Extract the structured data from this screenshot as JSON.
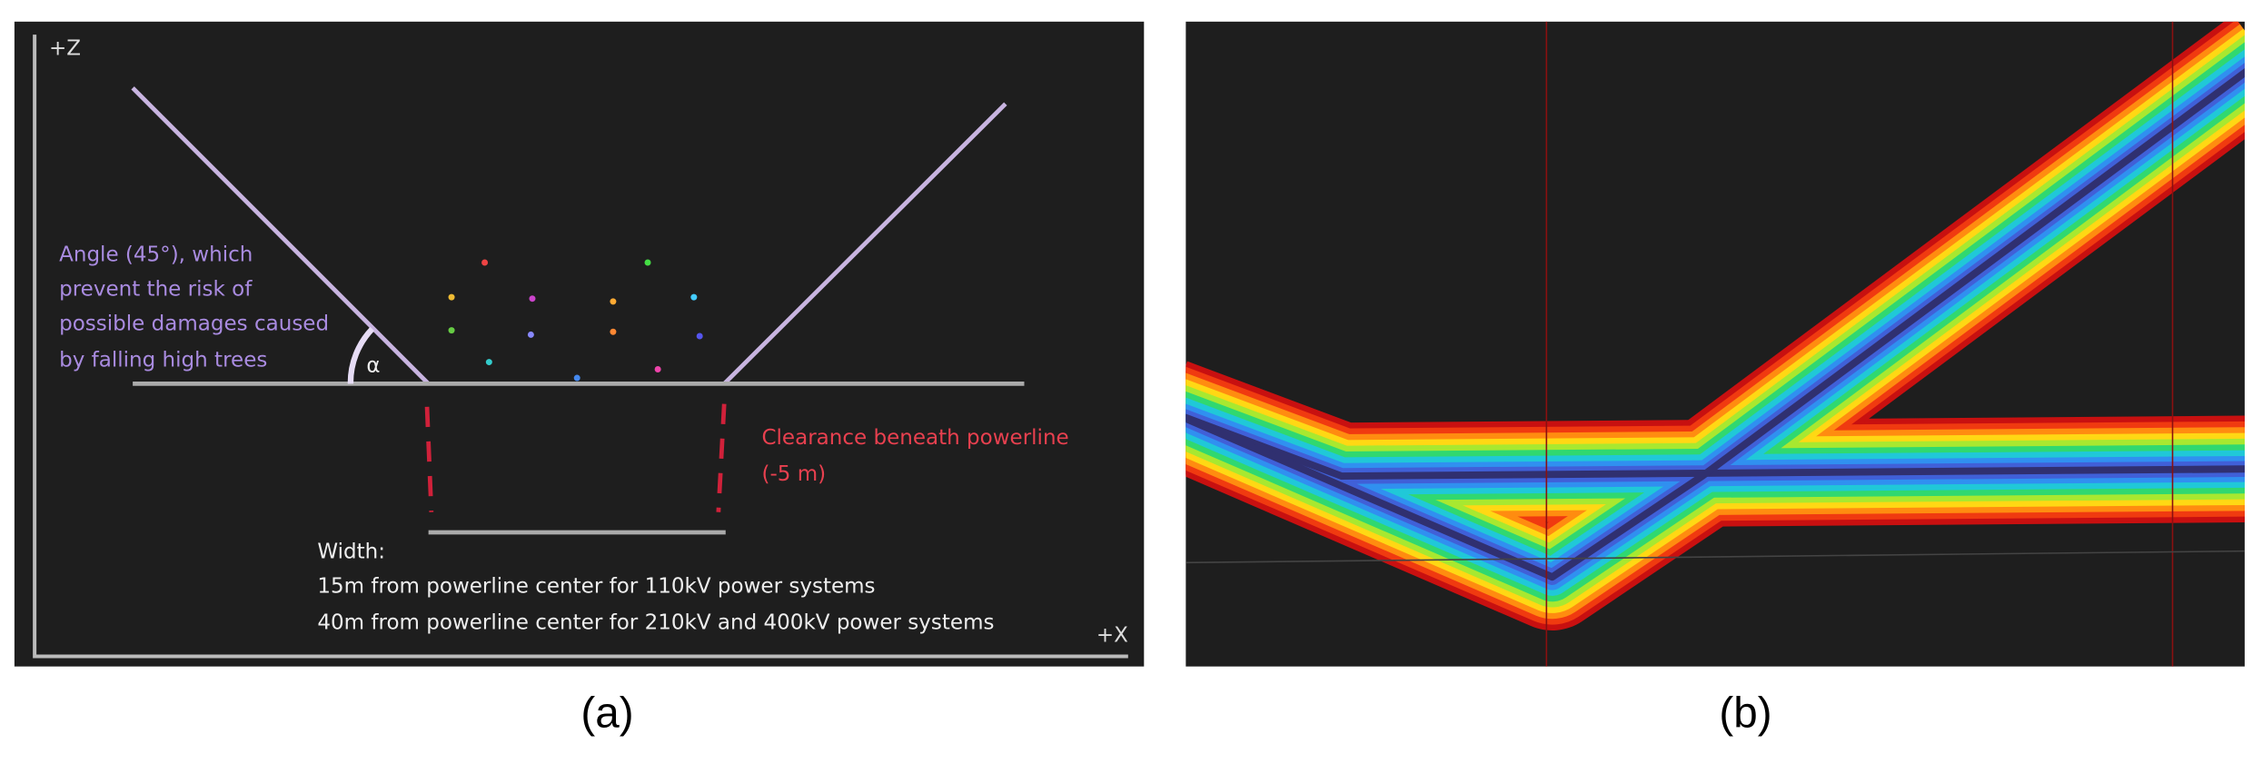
{
  "panel_a": {
    "axis_z": "+Z",
    "axis_x": "+X",
    "angle_note": [
      "Angle (45°), which",
      "prevent the risk of",
      "possible damages caused",
      "by falling high trees"
    ],
    "angle_symbol": "α",
    "clearance_note": [
      "Clearance beneath powerline",
      "(-5 m)"
    ],
    "width_note": [
      "Width:",
      "15m from powerline center for 110kV power systems",
      "40m from powerline center for 210kV and 400kV power systems"
    ],
    "caption": "(a)"
  },
  "panel_b": {
    "caption": "(b)"
  }
}
